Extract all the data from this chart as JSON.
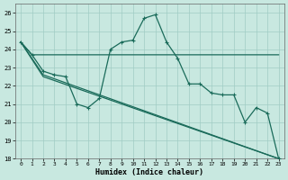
{
  "xlabel": "Humidex (Indice chaleur)",
  "xlim_min": -0.5,
  "xlim_max": 23.5,
  "ylim_min": 18,
  "ylim_max": 26.5,
  "yticks": [
    18,
    19,
    20,
    21,
    22,
    23,
    24,
    25,
    26
  ],
  "xticks": [
    0,
    1,
    2,
    3,
    4,
    5,
    6,
    7,
    8,
    9,
    10,
    11,
    12,
    13,
    14,
    15,
    16,
    17,
    18,
    19,
    20,
    21,
    22,
    23
  ],
  "bg_color": "#c8e8e0",
  "grid_color": "#a0ccc4",
  "line_color": "#1a6b5a",
  "lw": 0.9,
  "line1_x": [
    0,
    1,
    2,
    3,
    4,
    5,
    6,
    7,
    8,
    9,
    10,
    11,
    12,
    13,
    14,
    15,
    16,
    17,
    18,
    19,
    20,
    21,
    22,
    23
  ],
  "line1_y": [
    24.4,
    23.7,
    22.8,
    22.6,
    22.5,
    21.0,
    20.8,
    21.3,
    24.0,
    24.4,
    24.5,
    25.7,
    25.9,
    24.4,
    23.5,
    22.1,
    22.1,
    21.6,
    21.5,
    21.5,
    20.0,
    20.8,
    20.5,
    18.0
  ],
  "line2_x": [
    0,
    1,
    18,
    23
  ],
  "line2_y": [
    24.4,
    23.7,
    23.7,
    23.7
  ],
  "line3_x": [
    0,
    2,
    23
  ],
  "line3_y": [
    24.4,
    22.6,
    18.0
  ],
  "line4_x": [
    0,
    2,
    23
  ],
  "line4_y": [
    24.4,
    22.5,
    18.0
  ]
}
